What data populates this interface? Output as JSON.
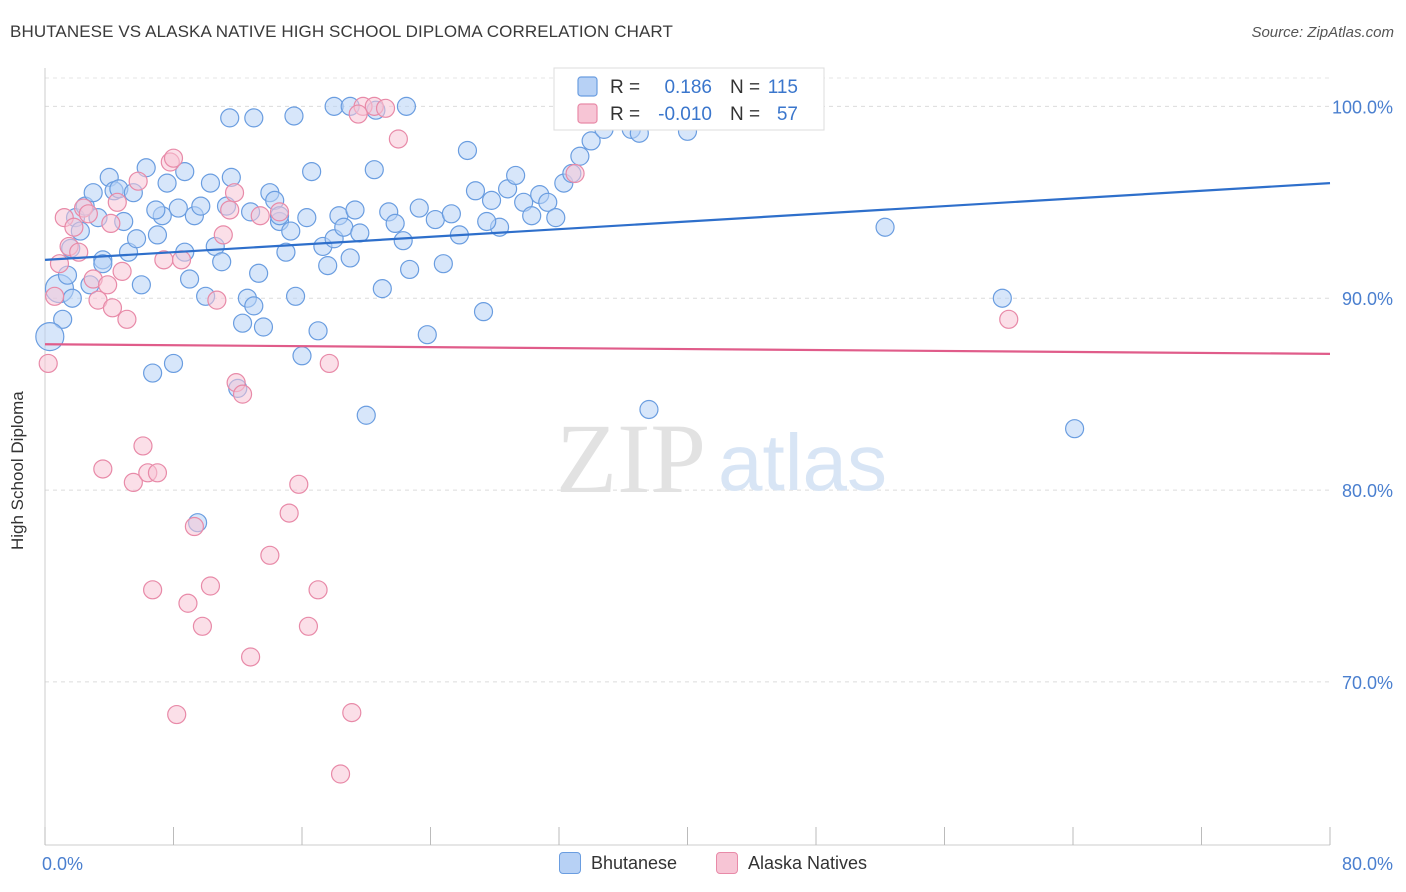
{
  "title": "BHUTANESE VS ALASKA NATIVE HIGH SCHOOL DIPLOMA CORRELATION CHART",
  "source": "Source: ZipAtlas.com",
  "watermark": {
    "zip": "ZIP",
    "atlas": "atlas"
  },
  "legend_top": [
    {
      "r_label": "R =",
      "r_value": "0.186",
      "n_label": "N =",
      "n_value": "115"
    },
    {
      "r_label": "R =",
      "r_value": "-0.010",
      "n_label": "N =",
      "n_value": "57"
    }
  ],
  "legend_bottom": [
    "Bhutanese",
    "Alaska Natives"
  ],
  "chart_data": {
    "type": "scatter",
    "title": "BHUTANESE VS ALASKA NATIVE HIGH SCHOOL DIPLOMA CORRELATION CHART",
    "xlabel": "",
    "ylabel": "High School Diploma",
    "xlim": [
      0,
      80
    ],
    "ylim": [
      61.5,
      102
    ],
    "x_tick_labels": [
      "0.0%",
      "80.0%"
    ],
    "y_ticks": [
      100,
      90,
      80,
      70
    ],
    "y_tick_labels": [
      "100.0%",
      "90.0%",
      "80.0%",
      "70.0%"
    ],
    "grid": true,
    "legend_placement": "top-center",
    "series": [
      {
        "name": "Bhutanese",
        "color": "#6a9de0",
        "fill": "#b7d1f5",
        "r": 0.186,
        "n": 115,
        "trend": {
          "x": [
            0,
            80
          ],
          "y": [
            92.0,
            96.0
          ],
          "color": "#2e6fcb"
        },
        "points": [
          [
            0.9,
            90.5
          ],
          [
            1.1,
            88.9
          ],
          [
            1.4,
            91.2
          ],
          [
            1.6,
            92.6
          ],
          [
            1.9,
            94.2
          ],
          [
            2.2,
            93.5
          ],
          [
            2.5,
            94.8
          ],
          [
            3.0,
            95.5
          ],
          [
            3.3,
            94.2
          ],
          [
            3.6,
            92.0
          ],
          [
            4.0,
            96.3
          ],
          [
            4.3,
            95.6
          ],
          [
            4.6,
            95.7
          ],
          [
            4.9,
            94.0
          ],
          [
            5.2,
            92.4
          ],
          [
            5.7,
            93.1
          ],
          [
            6.0,
            90.7
          ],
          [
            6.3,
            96.8
          ],
          [
            6.7,
            86.1
          ],
          [
            7.0,
            93.3
          ],
          [
            7.3,
            94.3
          ],
          [
            7.6,
            96.0
          ],
          [
            8.0,
            86.6
          ],
          [
            8.3,
            94.7
          ],
          [
            8.7,
            92.4
          ],
          [
            9.0,
            91.0
          ],
          [
            9.3,
            94.3
          ],
          [
            9.7,
            94.8
          ],
          [
            10.0,
            90.1
          ],
          [
            10.3,
            96.0
          ],
          [
            10.6,
            92.7
          ],
          [
            11.0,
            91.9
          ],
          [
            11.3,
            94.8
          ],
          [
            11.6,
            96.3
          ],
          [
            12.0,
            85.3
          ],
          [
            12.3,
            88.7
          ],
          [
            12.6,
            90.0
          ],
          [
            13.0,
            89.6
          ],
          [
            13.3,
            91.3
          ],
          [
            13.6,
            88.5
          ],
          [
            14.0,
            95.5
          ],
          [
            14.3,
            95.1
          ],
          [
            14.6,
            94.0
          ],
          [
            15.0,
            92.4
          ],
          [
            15.3,
            93.5
          ],
          [
            15.6,
            90.1
          ],
          [
            16.0,
            87.0
          ],
          [
            16.3,
            94.2
          ],
          [
            16.6,
            96.6
          ],
          [
            17.0,
            88.3
          ],
          [
            17.3,
            92.7
          ],
          [
            17.6,
            91.7
          ],
          [
            18.0,
            93.1
          ],
          [
            18.3,
            94.3
          ],
          [
            18.6,
            93.7
          ],
          [
            19.0,
            92.1
          ],
          [
            19.3,
            94.6
          ],
          [
            19.6,
            93.4
          ],
          [
            20.0,
            83.9
          ],
          [
            20.5,
            96.7
          ],
          [
            21.0,
            90.5
          ],
          [
            21.4,
            94.5
          ],
          [
            21.8,
            93.9
          ],
          [
            22.3,
            93.0
          ],
          [
            22.7,
            91.5
          ],
          [
            23.3,
            94.7
          ],
          [
            23.8,
            88.1
          ],
          [
            24.3,
            94.1
          ],
          [
            24.8,
            91.8
          ],
          [
            25.3,
            94.4
          ],
          [
            25.8,
            93.3
          ],
          [
            26.3,
            97.7
          ],
          [
            26.8,
            95.6
          ],
          [
            27.3,
            89.3
          ],
          [
            27.8,
            95.1
          ],
          [
            28.3,
            93.7
          ],
          [
            28.8,
            95.7
          ],
          [
            29.3,
            96.4
          ],
          [
            29.8,
            95.0
          ],
          [
            30.3,
            94.3
          ],
          [
            30.8,
            95.4
          ],
          [
            31.3,
            95.0
          ],
          [
            31.8,
            94.2
          ],
          [
            32.3,
            96.0
          ],
          [
            32.8,
            96.5
          ],
          [
            33.3,
            97.4
          ],
          [
            34.0,
            98.2
          ],
          [
            34.8,
            98.8
          ],
          [
            35.5,
            99.3
          ],
          [
            36.5,
            98.8
          ],
          [
            37.0,
            98.6
          ],
          [
            37.6,
            84.2
          ],
          [
            38.5,
            99.6
          ],
          [
            40.0,
            98.7
          ],
          [
            18.0,
            100.0
          ],
          [
            19.0,
            100.0
          ],
          [
            20.6,
            99.8
          ],
          [
            15.5,
            99.5
          ],
          [
            11.5,
            99.4
          ],
          [
            52.3,
            93.7
          ],
          [
            59.6,
            90.0
          ],
          [
            64.1,
            83.2
          ],
          [
            9.5,
            78.3
          ],
          [
            8.7,
            96.6
          ],
          [
            5.5,
            95.5
          ],
          [
            6.9,
            94.6
          ],
          [
            12.8,
            94.5
          ],
          [
            2.8,
            90.7
          ],
          [
            14.6,
            94.3
          ],
          [
            27.5,
            94.0
          ],
          [
            13.0,
            99.4
          ],
          [
            0.3,
            88.0
          ],
          [
            1.7,
            90.0
          ],
          [
            3.6,
            91.8
          ],
          [
            22.5,
            100.0
          ]
        ]
      },
      {
        "name": "Alaska Natives",
        "color": "#e88aa8",
        "fill": "#f7c5d5",
        "r": -0.01,
        "n": 57,
        "trend": {
          "x": [
            0,
            80
          ],
          "y": [
            87.6,
            87.1
          ],
          "color": "#e05c8a"
        },
        "points": [
          [
            0.2,
            86.6
          ],
          [
            0.6,
            90.1
          ],
          [
            0.9,
            91.8
          ],
          [
            1.2,
            94.2
          ],
          [
            1.5,
            92.7
          ],
          [
            1.8,
            93.7
          ],
          [
            2.1,
            92.4
          ],
          [
            2.4,
            94.7
          ],
          [
            2.7,
            94.4
          ],
          [
            3.0,
            91.0
          ],
          [
            3.3,
            89.9
          ],
          [
            3.6,
            81.1
          ],
          [
            3.9,
            90.7
          ],
          [
            4.2,
            89.5
          ],
          [
            4.5,
            95.0
          ],
          [
            4.8,
            91.4
          ],
          [
            5.1,
            88.9
          ],
          [
            5.5,
            80.4
          ],
          [
            5.8,
            96.1
          ],
          [
            6.1,
            82.3
          ],
          [
            6.4,
            80.9
          ],
          [
            6.7,
            74.8
          ],
          [
            7.0,
            80.9
          ],
          [
            7.4,
            92.0
          ],
          [
            7.8,
            97.1
          ],
          [
            8.2,
            68.3
          ],
          [
            8.5,
            92.0
          ],
          [
            8.9,
            74.1
          ],
          [
            9.3,
            78.1
          ],
          [
            9.8,
            72.9
          ],
          [
            10.3,
            75.0
          ],
          [
            10.7,
            89.9
          ],
          [
            11.1,
            93.3
          ],
          [
            11.5,
            94.6
          ],
          [
            11.9,
            85.6
          ],
          [
            12.3,
            85.0
          ],
          [
            12.8,
            71.3
          ],
          [
            13.4,
            94.3
          ],
          [
            14.0,
            76.6
          ],
          [
            14.6,
            94.5
          ],
          [
            15.2,
            78.8
          ],
          [
            15.8,
            80.3
          ],
          [
            16.4,
            72.9
          ],
          [
            17.0,
            74.8
          ],
          [
            17.7,
            86.6
          ],
          [
            18.4,
            65.2
          ],
          [
            19.1,
            68.4
          ],
          [
            19.8,
            100.0
          ],
          [
            20.5,
            100.0
          ],
          [
            21.2,
            99.9
          ],
          [
            22.0,
            98.3
          ],
          [
            8.0,
            97.3
          ],
          [
            11.8,
            95.5
          ],
          [
            4.1,
            93.9
          ],
          [
            60.0,
            88.9
          ],
          [
            33.0,
            96.5
          ],
          [
            19.5,
            99.6
          ]
        ]
      }
    ]
  }
}
